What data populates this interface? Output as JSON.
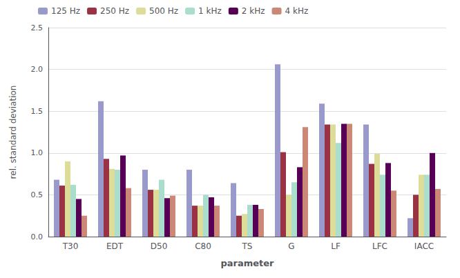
{
  "chart_data": {
    "type": "bar",
    "categories": [
      "T30",
      "EDT",
      "D50",
      "C80",
      "TS",
      "G",
      "LF",
      "LFC",
      "IACC"
    ],
    "series": [
      {
        "name": "125 Hz",
        "color": "#9999cc",
        "values": [
          0.68,
          1.62,
          0.8,
          0.8,
          0.64,
          2.06,
          1.59,
          1.34,
          0.22
        ]
      },
      {
        "name": "250 Hz",
        "color": "#993344",
        "values": [
          0.61,
          0.93,
          0.56,
          0.37,
          0.25,
          1.01,
          1.34,
          0.87,
          0.5
        ]
      },
      {
        "name": "500 Hz",
        "color": "#dddd99",
        "values": [
          0.9,
          0.81,
          0.56,
          0.37,
          0.27,
          0.5,
          1.34,
          0.99,
          0.74
        ]
      },
      {
        "name": "1 kHz",
        "color": "#aaddcc",
        "values": [
          0.62,
          0.8,
          0.68,
          0.5,
          0.38,
          0.65,
          1.12,
          0.74,
          0.74
        ]
      },
      {
        "name": "2 kHz",
        "color": "#550055",
        "values": [
          0.45,
          0.97,
          0.46,
          0.47,
          0.38,
          0.83,
          1.35,
          0.88,
          1.0
        ]
      },
      {
        "name": "4 kHz",
        "color": "#cc8877",
        "values": [
          0.25,
          0.58,
          0.49,
          0.37,
          0.33,
          1.31,
          1.35,
          0.55,
          0.57
        ]
      }
    ],
    "xlabel": "parameter",
    "ylabel": "rel. standard deviation",
    "ylim": [
      0.0,
      2.5
    ],
    "yticks": [
      {
        "value": 0,
        "label": "0.0"
      },
      {
        "value": 0.5,
        "label": "0.5"
      },
      {
        "value": 1,
        "label": "1.0"
      },
      {
        "value": 1.5,
        "label": "1.5"
      },
      {
        "value": 2,
        "label": "2.0"
      },
      {
        "value": 2.5,
        "label": "2.5"
      }
    ],
    "grid": true,
    "legend": "upper left"
  }
}
